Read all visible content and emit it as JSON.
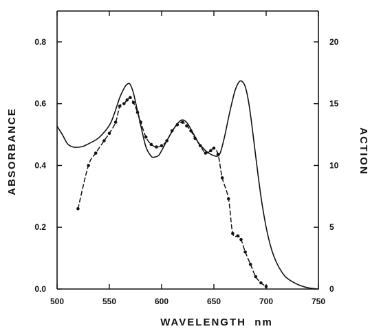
{
  "chart_data": {
    "type": "line",
    "title": "",
    "xlabel": "WAVELENGTH  nm",
    "ylabel_left": "ABSORBANCE",
    "ylabel_right": "ACTION",
    "xlim": [
      500,
      750
    ],
    "ylim_left": [
      0,
      0.9
    ],
    "ylim_right": [
      0,
      22.5
    ],
    "x_ticks": [
      500,
      550,
      600,
      650,
      700,
      750
    ],
    "y_ticks_left": [
      0.0,
      0.2,
      0.4,
      0.6,
      0.8
    ],
    "y_tick_labels_left": [
      "0.0",
      "0.2",
      "0.4",
      "0.6",
      "0.8"
    ],
    "y_ticks_right": [
      0,
      5,
      10,
      15,
      20
    ],
    "y_tick_labels_right": [
      "0",
      "5",
      "10",
      "15",
      "20"
    ],
    "grid": false,
    "legend": "none",
    "series": [
      {
        "axis": "left",
        "style": "solid",
        "color": "#111111",
        "points": [
          [
            500,
            0.527
          ],
          [
            505,
            0.5
          ],
          [
            510,
            0.47
          ],
          [
            515,
            0.46
          ],
          [
            520,
            0.459
          ],
          [
            525,
            0.462
          ],
          [
            530,
            0.47
          ],
          [
            540,
            0.49
          ],
          [
            550,
            0.53
          ],
          [
            555,
            0.57
          ],
          [
            560,
            0.62
          ],
          [
            565,
            0.655
          ],
          [
            568,
            0.665
          ],
          [
            570,
            0.662
          ],
          [
            573,
            0.635
          ],
          [
            576,
            0.59
          ],
          [
            580,
            0.53
          ],
          [
            585,
            0.46
          ],
          [
            590,
            0.43
          ],
          [
            593,
            0.427
          ],
          [
            597,
            0.432
          ],
          [
            600,
            0.448
          ],
          [
            605,
            0.48
          ],
          [
            610,
            0.51
          ],
          [
            615,
            0.535
          ],
          [
            619,
            0.547
          ],
          [
            622,
            0.545
          ],
          [
            625,
            0.535
          ],
          [
            630,
            0.505
          ],
          [
            635,
            0.475
          ],
          [
            640,
            0.455
          ],
          [
            645,
            0.44
          ],
          [
            650,
            0.432
          ],
          [
            653,
            0.43
          ],
          [
            656,
            0.44
          ],
          [
            660,
            0.49
          ],
          [
            665,
            0.57
          ],
          [
            670,
            0.64
          ],
          [
            674,
            0.67
          ],
          [
            677,
            0.672
          ],
          [
            680,
            0.655
          ],
          [
            683,
            0.61
          ],
          [
            686,
            0.54
          ],
          [
            690,
            0.43
          ],
          [
            695,
            0.3
          ],
          [
            700,
            0.2
          ],
          [
            705,
            0.13
          ],
          [
            710,
            0.085
          ],
          [
            715,
            0.055
          ],
          [
            720,
            0.035
          ],
          [
            730,
            0.015
          ],
          [
            740,
            0.004
          ],
          [
            750,
            0.0
          ]
        ]
      },
      {
        "axis": "right",
        "style": "dashed",
        "color": "#111111",
        "points": [
          [
            520,
            6.5
          ],
          [
            530,
            10.0
          ],
          [
            537,
            11.0
          ],
          [
            545,
            12.0
          ],
          [
            550,
            12.6
          ],
          [
            556,
            13.5
          ],
          [
            560,
            14.8
          ],
          [
            564,
            15.0
          ],
          [
            567,
            15.3
          ],
          [
            570,
            15.5
          ],
          [
            573,
            15.1
          ],
          [
            577,
            14.3
          ],
          [
            580,
            13.5
          ],
          [
            585,
            12.3
          ],
          [
            590,
            11.7
          ],
          [
            595,
            11.5
          ],
          [
            600,
            11.6
          ],
          [
            605,
            12.0
          ],
          [
            610,
            12.8
          ],
          [
            615,
            13.3
          ],
          [
            620,
            13.5
          ],
          [
            624,
            13.2
          ],
          [
            628,
            12.8
          ],
          [
            632,
            12.2
          ],
          [
            637,
            11.6
          ],
          [
            642,
            11.0
          ],
          [
            647,
            11.2
          ],
          [
            650,
            11.4
          ],
          [
            654,
            10.9
          ],
          [
            658,
            9.0
          ],
          [
            664,
            7.3
          ],
          [
            668,
            4.5
          ],
          [
            673,
            4.3
          ],
          [
            676,
            4.0
          ],
          [
            680,
            3.0
          ],
          [
            685,
            2.0
          ],
          [
            690,
            1.0
          ],
          [
            695,
            0.5
          ],
          [
            700,
            0.2
          ]
        ]
      }
    ]
  }
}
